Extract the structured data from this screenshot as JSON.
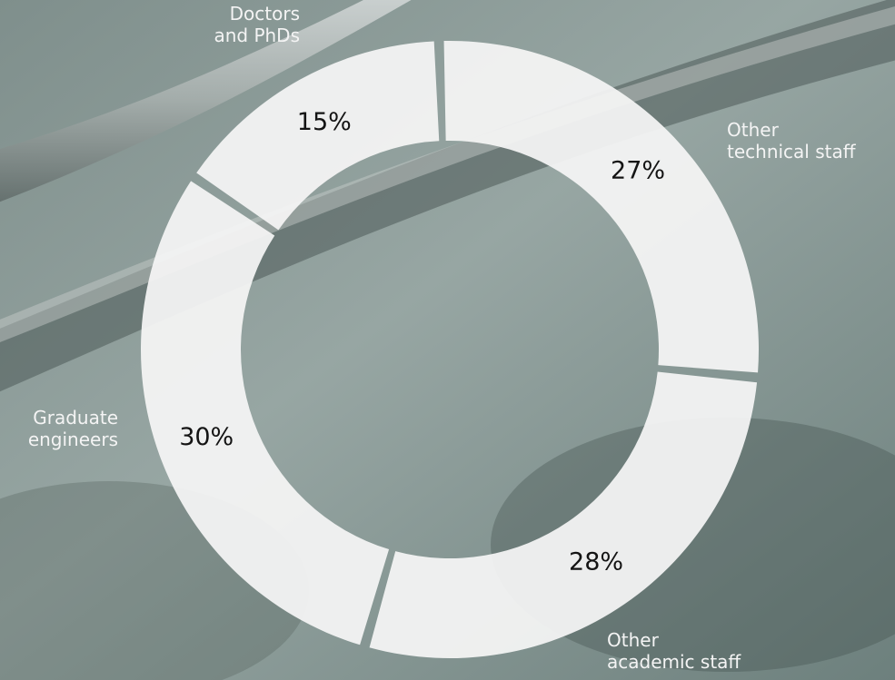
{
  "chart_data": {
    "type": "pie",
    "variant": "donut",
    "categories": [
      "Other technical staff",
      "Other academic staff",
      "Graduate engineers",
      "Doctors and PhDs"
    ],
    "label_lines": [
      [
        "Other",
        "technical staff"
      ],
      [
        "Other",
        "academic staff"
      ],
      [
        "Graduate",
        "engineers"
      ],
      [
        "Doctors",
        "and PhDs"
      ]
    ],
    "values": [
      27,
      28,
      30,
      15
    ],
    "value_labels": [
      "27%",
      "28%",
      "30%",
      "15%"
    ],
    "title": "",
    "legend": "none",
    "colors": {
      "segment": "#f4f4f4",
      "value_text": "#141414",
      "category_text": "#f4f4f4",
      "background": "#8a9c9a"
    }
  }
}
